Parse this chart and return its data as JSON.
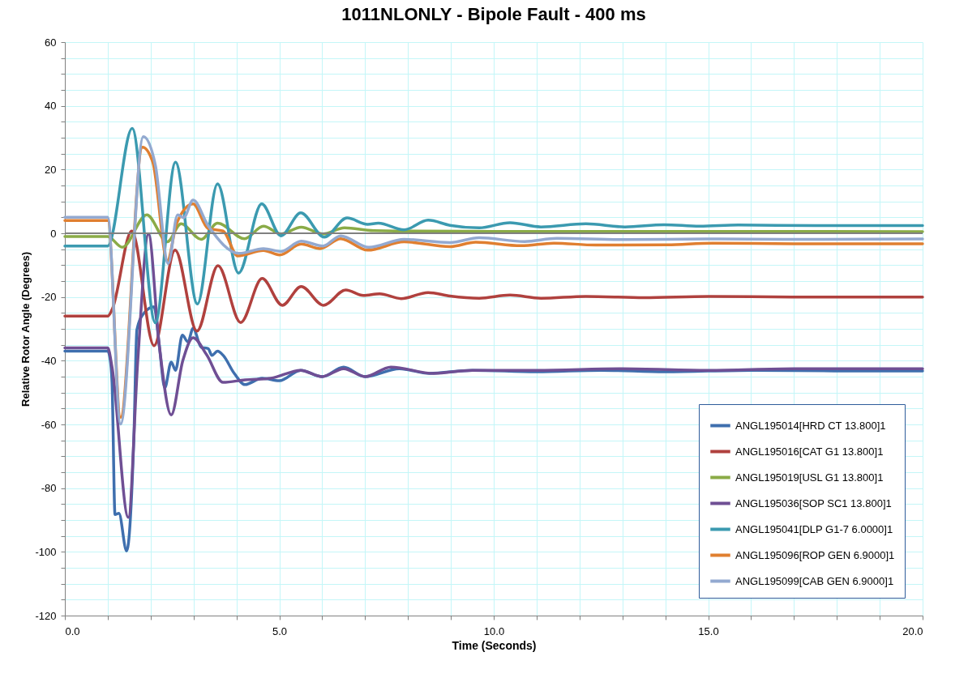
{
  "chart_data": {
    "type": "line",
    "title": "1011NLONLY - Bipole Fault - 400 ms",
    "xlabel": "Time (Seconds)",
    "ylabel": "Relative Rotor Angle (Degrees)",
    "xlim": [
      0,
      20
    ],
    "ylim": [
      -120,
      60
    ],
    "xticks": [
      {
        "value": 0,
        "label": "0.0"
      },
      {
        "value": 1,
        "label": null
      },
      {
        "value": 2,
        "label": null
      },
      {
        "value": 3,
        "label": null
      },
      {
        "value": 4,
        "label": null
      },
      {
        "value": 5,
        "label": "5.0"
      },
      {
        "value": 6,
        "label": null
      },
      {
        "value": 7,
        "label": null
      },
      {
        "value": 8,
        "label": null
      },
      {
        "value": 9,
        "label": null
      },
      {
        "value": 10,
        "label": "10.0"
      },
      {
        "value": 11,
        "label": null
      },
      {
        "value": 12,
        "label": null
      },
      {
        "value": 13,
        "label": null
      },
      {
        "value": 14,
        "label": null
      },
      {
        "value": 15,
        "label": "15.0"
      },
      {
        "value": 16,
        "label": null
      },
      {
        "value": 17,
        "label": null
      },
      {
        "value": 18,
        "label": null
      },
      {
        "value": 19,
        "label": null
      },
      {
        "value": 20,
        "label": "20.0"
      }
    ],
    "yticks": [
      -120,
      {
        "value": -115,
        "label": null
      },
      {
        "value": -110,
        "label": null
      },
      {
        "value": -105,
        "label": null
      },
      -100,
      {
        "value": -95,
        "label": null
      },
      {
        "value": -90,
        "label": null
      },
      {
        "value": -85,
        "label": null
      },
      -80,
      {
        "value": -75,
        "label": null
      },
      {
        "value": -70,
        "label": null
      },
      {
        "value": -65,
        "label": null
      },
      -60,
      {
        "value": -55,
        "label": null
      },
      {
        "value": -50,
        "label": null
      },
      {
        "value": -45,
        "label": null
      },
      -40,
      {
        "value": -35,
        "label": null
      },
      {
        "value": -30,
        "label": null
      },
      {
        "value": -25,
        "label": null
      },
      -20,
      {
        "value": -15,
        "label": null
      },
      {
        "value": -10,
        "label": null
      },
      {
        "value": -5,
        "label": null
      },
      0,
      {
        "value": 5,
        "label": null
      },
      {
        "value": 10,
        "label": null
      },
      {
        "value": 15,
        "label": null
      },
      20,
      {
        "value": 25,
        "label": null
      },
      {
        "value": 30,
        "label": null
      },
      {
        "value": 35,
        "label": null
      },
      40,
      {
        "value": 45,
        "label": null
      },
      {
        "value": 50,
        "label": null
      },
      {
        "value": 55,
        "label": null
      },
      60
    ],
    "grid": true,
    "legend": "bottom right",
    "ref_lines": [
      {
        "axis": "y",
        "value": 0,
        "color": "#808080"
      }
    ],
    "series": [
      {
        "name": "ANGL195014[HRD CT 13.800]1",
        "color": "#3f6fae",
        "x": [
          0,
          1.0,
          1.05,
          1.1,
          1.17,
          1.26,
          1.44,
          1.61,
          1.68,
          1.85,
          2.08,
          2.2,
          2.33,
          2.48,
          2.58,
          2.74,
          2.87,
          2.99,
          3.18,
          3.34,
          3.43,
          3.56,
          3.69,
          3.95,
          4.2,
          4.6,
          5.0,
          5.5,
          6.0,
          6.5,
          7.0,
          7.8,
          8.5,
          9.5,
          11,
          12.5,
          14,
          16,
          18,
          20
        ],
        "values": [
          -37,
          -37,
          -39,
          -46.8,
          -88.3,
          -87.9,
          -99.7,
          -63.7,
          -30.3,
          -25,
          -23.1,
          -35,
          -48.5,
          -40.4,
          -43,
          -32,
          -34.1,
          -29.8,
          -35.8,
          -36.2,
          -38.3,
          -37,
          -38.3,
          -44,
          -47.5,
          -45.5,
          -46.3,
          -43,
          -45,
          -42,
          -45,
          -42.5,
          -44,
          -43,
          -43.5,
          -43,
          -43.5,
          -43,
          -43.2,
          -43.2
        ]
      },
      {
        "name": "ANGL195016[CAT G1 13.800]1",
        "color": "#b0413e",
        "x": [
          0,
          1.0,
          1.1,
          1.56,
          2.08,
          2.57,
          3.08,
          3.57,
          4.1,
          4.6,
          5.07,
          5.51,
          6.03,
          6.55,
          6.96,
          7.34,
          7.84,
          8.47,
          8.98,
          9.66,
          10.38,
          11.1,
          12.15,
          13.5,
          15,
          17,
          20
        ],
        "values": [
          -26,
          -26,
          -24,
          0.7,
          -35.3,
          -5.3,
          -30.7,
          -10.2,
          -28,
          -14.2,
          -22.6,
          -16.7,
          -22.6,
          -17.8,
          -19.5,
          -19,
          -20.5,
          -18.6,
          -19.7,
          -20.4,
          -19.4,
          -20.4,
          -19.8,
          -20.2,
          -19.8,
          -20,
          -20
        ]
      },
      {
        "name": "ANGL195019[USL G1 13.800]1",
        "color": "#8aab47",
        "x": [
          0,
          1.0,
          1.34,
          1.91,
          2.39,
          2.71,
          3.18,
          3.56,
          4.19,
          4.63,
          5.04,
          5.51,
          6.02,
          6.52,
          7.2,
          8,
          10,
          14,
          20
        ],
        "values": [
          -1,
          -1,
          -4.4,
          5.8,
          -2.7,
          3,
          -1.9,
          3.2,
          -1.7,
          2.2,
          -0.2,
          1.9,
          -0.2,
          1.7,
          0.8,
          0.7,
          0.6,
          0.6,
          0.5
        ]
      },
      {
        "name": "ANGL195036[SOP SC1 13.800]1",
        "color": "#6f4f94",
        "x": [
          0,
          1.0,
          1.1,
          1.48,
          1.7,
          1.95,
          2.2,
          2.48,
          2.75,
          2.99,
          3.3,
          3.69,
          4.2,
          4.8,
          5.5,
          6.0,
          6.5,
          7.0,
          7.6,
          8.6,
          9.5,
          11,
          13,
          15,
          17,
          20
        ],
        "values": [
          -36,
          -36,
          -42,
          -89.2,
          -40,
          -0.2,
          -35,
          -57,
          -40,
          -32.8,
          -38,
          -46.8,
          -46,
          -45.5,
          -43,
          -45,
          -42.5,
          -45,
          -42,
          -44,
          -43,
          -43,
          -42.5,
          -43,
          -42.5,
          -42.5
        ]
      },
      {
        "name": "ANGL195041[DLP G1-7 6.0000]1",
        "color": "#3b9ab0",
        "x": [
          0,
          1.0,
          1.57,
          2.11,
          2.58,
          3.09,
          3.56,
          4.05,
          4.59,
          5.04,
          5.5,
          6.05,
          6.58,
          7.06,
          7.31,
          7.91,
          8.47,
          8.98,
          9.66,
          10.38,
          11.1,
          12.15,
          13.06,
          13.97,
          14.8,
          15.7,
          17.5,
          20
        ],
        "values": [
          -4,
          -4,
          32.9,
          -28.1,
          22.3,
          -22.2,
          15.5,
          -12.5,
          9.2,
          -0.8,
          6.4,
          -1.2,
          4.8,
          2.8,
          3.2,
          1.1,
          4.1,
          2.5,
          1.7,
          3.3,
          2,
          3,
          2,
          2.7,
          2.2,
          2.6,
          2.4,
          2.4
        ]
      },
      {
        "name": "ANGL195096[ROP GEN 6.9000]1",
        "color": "#e07f30",
        "x": [
          0,
          1.0,
          1.3,
          1.81,
          2.05,
          2.39,
          2.61,
          2.99,
          3.34,
          3.69,
          4.03,
          4.63,
          5.01,
          5.51,
          5.95,
          6.43,
          7.06,
          7.91,
          8.98,
          9.58,
          10.64,
          11.4,
          12.38,
          14.05,
          15.1,
          17,
          20
        ],
        "values": [
          4,
          4,
          -57.8,
          27,
          22.3,
          -8.6,
          3.2,
          9.2,
          1.5,
          0.7,
          -7.1,
          -5.4,
          -6.8,
          -3.4,
          -4.8,
          -1.7,
          -5.3,
          -2.7,
          -4.2,
          -2.8,
          -3.9,
          -3.1,
          -3.7,
          -3.6,
          -3.1,
          -3.3,
          -3.3
        ]
      },
      {
        "name": "ANGL195099[CAB GEN 6.9000]1",
        "color": "#93a9d0",
        "x": [
          0,
          1.0,
          1.3,
          1.83,
          2.11,
          2.41,
          2.63,
          2.77,
          2.99,
          3.34,
          4.06,
          4.63,
          5.04,
          5.51,
          6.02,
          6.43,
          7.09,
          7.91,
          8.98,
          9.66,
          10.72,
          11.47,
          13,
          15,
          17,
          20
        ],
        "values": [
          5,
          5,
          -59.9,
          30.3,
          21.4,
          -9.5,
          5.8,
          4.9,
          10.4,
          2.4,
          -6.3,
          -4.8,
          -5.7,
          -2.5,
          -4,
          -0.8,
          -4.4,
          -1.9,
          -2.9,
          -1.4,
          -2.6,
          -1.6,
          -2,
          -1.8,
          -1.9,
          -1.8
        ]
      }
    ]
  }
}
